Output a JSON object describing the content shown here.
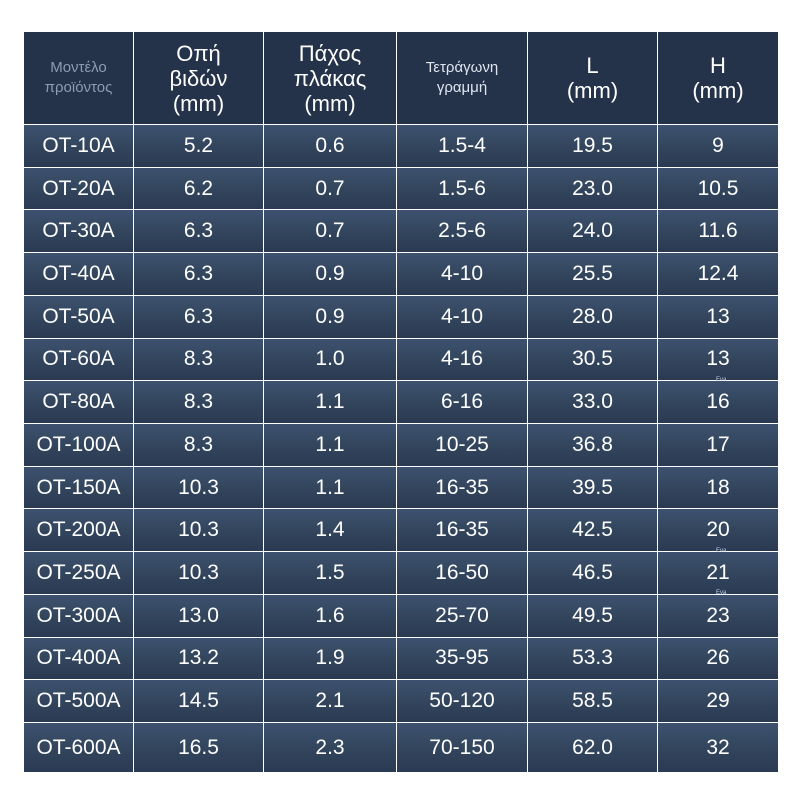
{
  "table": {
    "headers": [
      {
        "lines": [
          "Μοντέλο",
          "προϊόντος"
        ]
      },
      {
        "lines": [
          "Οπή",
          "βιδών",
          "(mm)"
        ]
      },
      {
        "lines": [
          "Πάχος",
          "πλάκας",
          "(mm)"
        ]
      },
      {
        "lines": [
          "Τετράγωνη",
          "γραμμή"
        ]
      },
      {
        "lines": [
          "L",
          "(mm)"
        ]
      },
      {
        "lines": [
          "H",
          "(mm)"
        ]
      }
    ],
    "rows": [
      [
        "OT-10A",
        "5.2",
        "0.6",
        "1.5-4",
        "19.5",
        "9"
      ],
      [
        "OT-20A",
        "6.2",
        "0.7",
        "1.5-6",
        "23.0",
        "10.5"
      ],
      [
        "OT-30A",
        "6.3",
        "0.7",
        "2.5-6",
        "24.0",
        "11.6"
      ],
      [
        "OT-40A",
        "6.3",
        "0.9",
        "4-10",
        "25.5",
        "12.4"
      ],
      [
        "OT-50A",
        "6.3",
        "0.9",
        "4-10",
        "28.0",
        "13"
      ],
      [
        "OT-60A",
        "8.3",
        "1.0",
        "4-16",
        "30.5",
        "13"
      ],
      [
        "OT-80A",
        "8.3",
        "1.1",
        "6-16",
        "33.0",
        "16"
      ],
      [
        "OT-100A",
        "8.3",
        "1.1",
        "10-25",
        "36.8",
        "17"
      ],
      [
        "OT-150A",
        "10.3",
        "1.1",
        "16-35",
        "39.5",
        "18"
      ],
      [
        "OT-200A",
        "10.3",
        "1.4",
        "16-35",
        "42.5",
        "20"
      ],
      [
        "OT-250A",
        "10.3",
        "1.5",
        "16-50",
        "46.5",
        "21"
      ],
      [
        "OT-300A",
        "13.0",
        "1.6",
        "25-70",
        "49.5",
        "23"
      ],
      [
        "OT-400A",
        "13.2",
        "1.9",
        "35-95",
        "53.3",
        "26"
      ],
      [
        "OT-500A",
        "14.5",
        "2.1",
        "50-120",
        "58.5",
        "29"
      ],
      [
        "OT-600A",
        "16.5",
        "2.3",
        "70-150",
        "62.0",
        "32"
      ]
    ]
  },
  "watermark": "Eva",
  "colors": {
    "header_bg": "#24324a",
    "cell_bg_top": "#3d5270",
    "cell_bg_bottom": "#2a3a52",
    "grid_line": "#ffffff",
    "text": "#ffffff"
  }
}
